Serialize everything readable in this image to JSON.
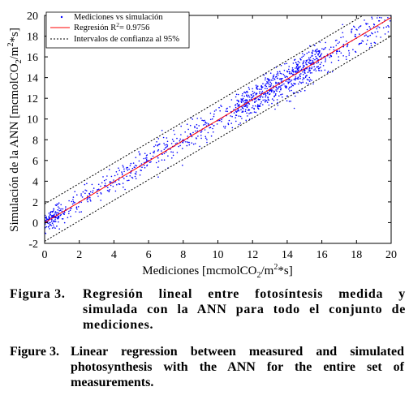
{
  "chart_data": {
    "type": "scatter",
    "xlabel_main": "Mediciones [mcmolCO",
    "xlabel_sub": "2",
    "xlabel_mid": "/m",
    "xlabel_sup": "2",
    "xlabel_tail": "*s]",
    "ylabel_main": "Simulación de la ANN [mcmolCO",
    "ylabel_sub": "2",
    "ylabel_mid": "/m",
    "ylabel_sup": "2",
    "ylabel_tail": "*s]",
    "xlim": [
      0,
      20
    ],
    "ylim": [
      -2,
      20
    ],
    "x_ticks": [
      "0",
      "2",
      "4",
      "6",
      "8",
      "10",
      "12",
      "14",
      "16",
      "18",
      "20"
    ],
    "y_ticks": [
      "-2",
      "0",
      "2",
      "4",
      "6",
      "8",
      "10",
      "12",
      "14",
      "16",
      "18",
      "20"
    ],
    "grid": false,
    "legend_position": "top-left",
    "legend": [
      {
        "label": "Mediciones vs simulación",
        "style": "dot",
        "color": "#0000ff"
      },
      {
        "label_main": "Regresión R",
        "label_sup": "2",
        "label_tail": "= 0.9756",
        "style": "solid",
        "color": "#ff0000"
      },
      {
        "label": "Intervalos de confianza al 95%",
        "style": "dashed",
        "color": "#000000"
      }
    ],
    "series": [
      {
        "name": "Mediciones vs simulación",
        "kind": "scatter",
        "color": "#0000ff",
        "approx_points": 1200,
        "note": "points cluster along y = x with spread ~1; dense near origin and between 11 and 16"
      },
      {
        "name": "Regresión",
        "kind": "line",
        "color": "#ff0000",
        "x": [
          0,
          20
        ],
        "y": [
          0,
          19.8
        ]
      },
      {
        "name": "Intervalos de confianza al 95%",
        "kind": "line",
        "color": "#000000",
        "dashed": true,
        "x": [
          0,
          20
        ],
        "y": [
          1.8,
          21.6
        ]
      },
      {
        "name": "Intervalos de confianza al 95%",
        "kind": "line",
        "color": "#000000",
        "dashed": true,
        "x": [
          0,
          20
        ],
        "y": [
          -1.8,
          18.0
        ]
      }
    ],
    "scatter_sample": {
      "x": [
        0.2,
        0.5,
        0.8,
        1.0,
        1.5,
        2.0,
        2.5,
        3.0,
        3.5,
        4.0,
        4.5,
        5.0,
        5.5,
        6.0,
        6.5,
        7.0,
        7.5,
        8.0,
        8.5,
        9.0,
        9.5,
        10.0,
        10.5,
        11.0,
        11.5,
        12.0,
        12.5,
        13.0,
        13.5,
        14.0,
        14.5,
        15.0,
        15.5,
        16.0,
        16.5,
        17.0,
        17.5,
        18.0,
        18.5,
        19.0,
        19.5
      ],
      "y": [
        0.3,
        0.5,
        0.9,
        1.1,
        1.4,
        2.0,
        2.4,
        3.0,
        3.6,
        3.9,
        4.4,
        5.0,
        5.4,
        6.0,
        6.4,
        6.9,
        7.4,
        8.0,
        8.3,
        8.9,
        9.4,
        9.9,
        10.4,
        10.9,
        11.4,
        11.8,
        12.4,
        12.8,
        13.4,
        13.8,
        14.3,
        14.8,
        15.3,
        15.9,
        16.3,
        16.8,
        17.2,
        17.8,
        18.3,
        18.9,
        19.3
      ]
    }
  },
  "captions": {
    "es_label": "Figura 3.",
    "es_text": "Regresión lineal entre fotosíntesis medida y simulada con la ANN para todo el conjunto de mediciones.",
    "en_label": "Figure 3.",
    "en_text": "Linear regression between measured and simulated photosynthesis with the ANN for the entire set of measurements."
  }
}
